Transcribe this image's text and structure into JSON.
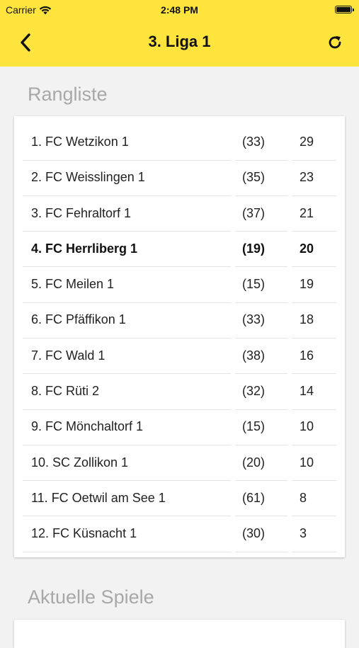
{
  "status_bar": {
    "carrier": "Carrier",
    "time": "2:48 PM"
  },
  "navbar": {
    "title": "3. Liga 1",
    "back_icon": "chevron-left-icon",
    "refresh_icon": "refresh-icon"
  },
  "colors": {
    "header_background": "#fee43c",
    "page_background": "#f2f2f2",
    "section_title": "#a8a8a8"
  },
  "standings": {
    "title": "Rangliste",
    "rows": [
      {
        "team": "1. FC Wetzikon 1",
        "games": "(33)",
        "points": "29",
        "highlighted": false
      },
      {
        "team": "2. FC Weisslingen 1",
        "games": "(35)",
        "points": "23",
        "highlighted": false
      },
      {
        "team": "3. FC Fehraltorf 1",
        "games": "(37)",
        "points": "21",
        "highlighted": false
      },
      {
        "team": "4. FC Herrliberg 1",
        "games": "(19)",
        "points": "20",
        "highlighted": true
      },
      {
        "team": "5. FC Meilen 1",
        "games": "(15)",
        "points": "19",
        "highlighted": false
      },
      {
        "team": "6. FC Pfäffikon 1",
        "games": "(33)",
        "points": "18",
        "highlighted": false
      },
      {
        "team": "7. FC Wald 1",
        "games": "(38)",
        "points": "16",
        "highlighted": false
      },
      {
        "team": "8. FC Rüti 2",
        "games": "(32)",
        "points": "14",
        "highlighted": false
      },
      {
        "team": "9. FC Mönchaltorf 1",
        "games": "(15)",
        "points": "10",
        "highlighted": false
      },
      {
        "team": "10. SC Zollikon 1",
        "games": "(20)",
        "points": "10",
        "highlighted": false
      },
      {
        "team": "11. FC Oetwil am See 1",
        "games": "(61)",
        "points": "8",
        "highlighted": false
      },
      {
        "team": "12. FC Küsnacht 1",
        "games": "(30)",
        "points": "3",
        "highlighted": false
      }
    ]
  },
  "current_games": {
    "title": "Aktuelle Spiele"
  }
}
